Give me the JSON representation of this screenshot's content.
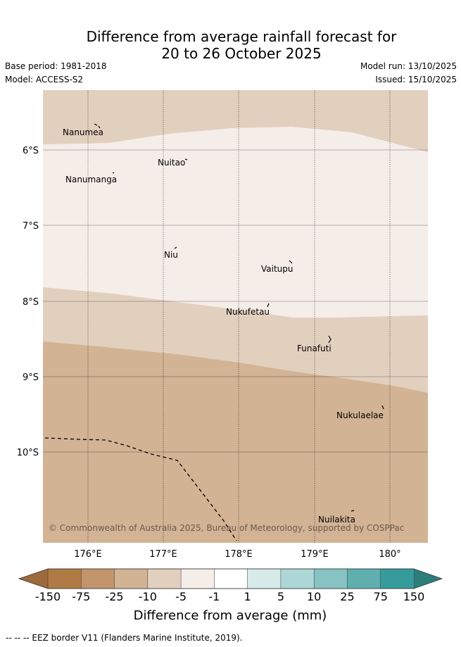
{
  "header": {
    "title_line1": "Difference from average rainfall forecast for",
    "title_line2": "20 to 26 October 2025",
    "base_period": "Base period: 1981-2018",
    "model": "Model: ACCESS-S2",
    "model_run": "Model run: 13/10/2025",
    "issued": "Issued: 15/10/2025"
  },
  "map": {
    "lat_labels": [
      "6°S",
      "7°S",
      "8°S",
      "9°S",
      "10°S"
    ],
    "lon_labels": [
      "176°E",
      "177°E",
      "178°E",
      "179°E",
      "180°"
    ],
    "places": [
      "Nanumea",
      "Nuitao",
      "Nanumanga",
      "Niu",
      "Vaitupu",
      "Nukufetau",
      "Funafuti",
      "Nukulaelae",
      "Nuilakita"
    ],
    "copyright": "© Commonwealth of Australia 2025, Bureau of Meteorology, supported by COSPPac",
    "eez_note": "--  --  -- EEZ border V11 (Flanders Marine Institute, 2019)."
  },
  "colorbar": {
    "ticks": [
      "-150",
      "-75",
      "-25",
      "-10",
      "-5",
      "-1",
      "1",
      "5",
      "10",
      "25",
      "75",
      "150"
    ],
    "colors": [
      "#b07a45",
      "#c2956c",
      "#d2b394",
      "#e2d0be",
      "#f5ede8",
      "#ffffff",
      "#d6ebea",
      "#acd7d6",
      "#86c3c2",
      "#5eafae",
      "#359c9b"
    ],
    "end_low": "#9d6a3b",
    "end_high": "#2c7e7d",
    "title": "Difference from average (mm)"
  },
  "zones": {
    "band_dry_light": "#e2d0be",
    "band_near_avg": "#f5ede8",
    "band_dry_mid": "#d2b394"
  }
}
